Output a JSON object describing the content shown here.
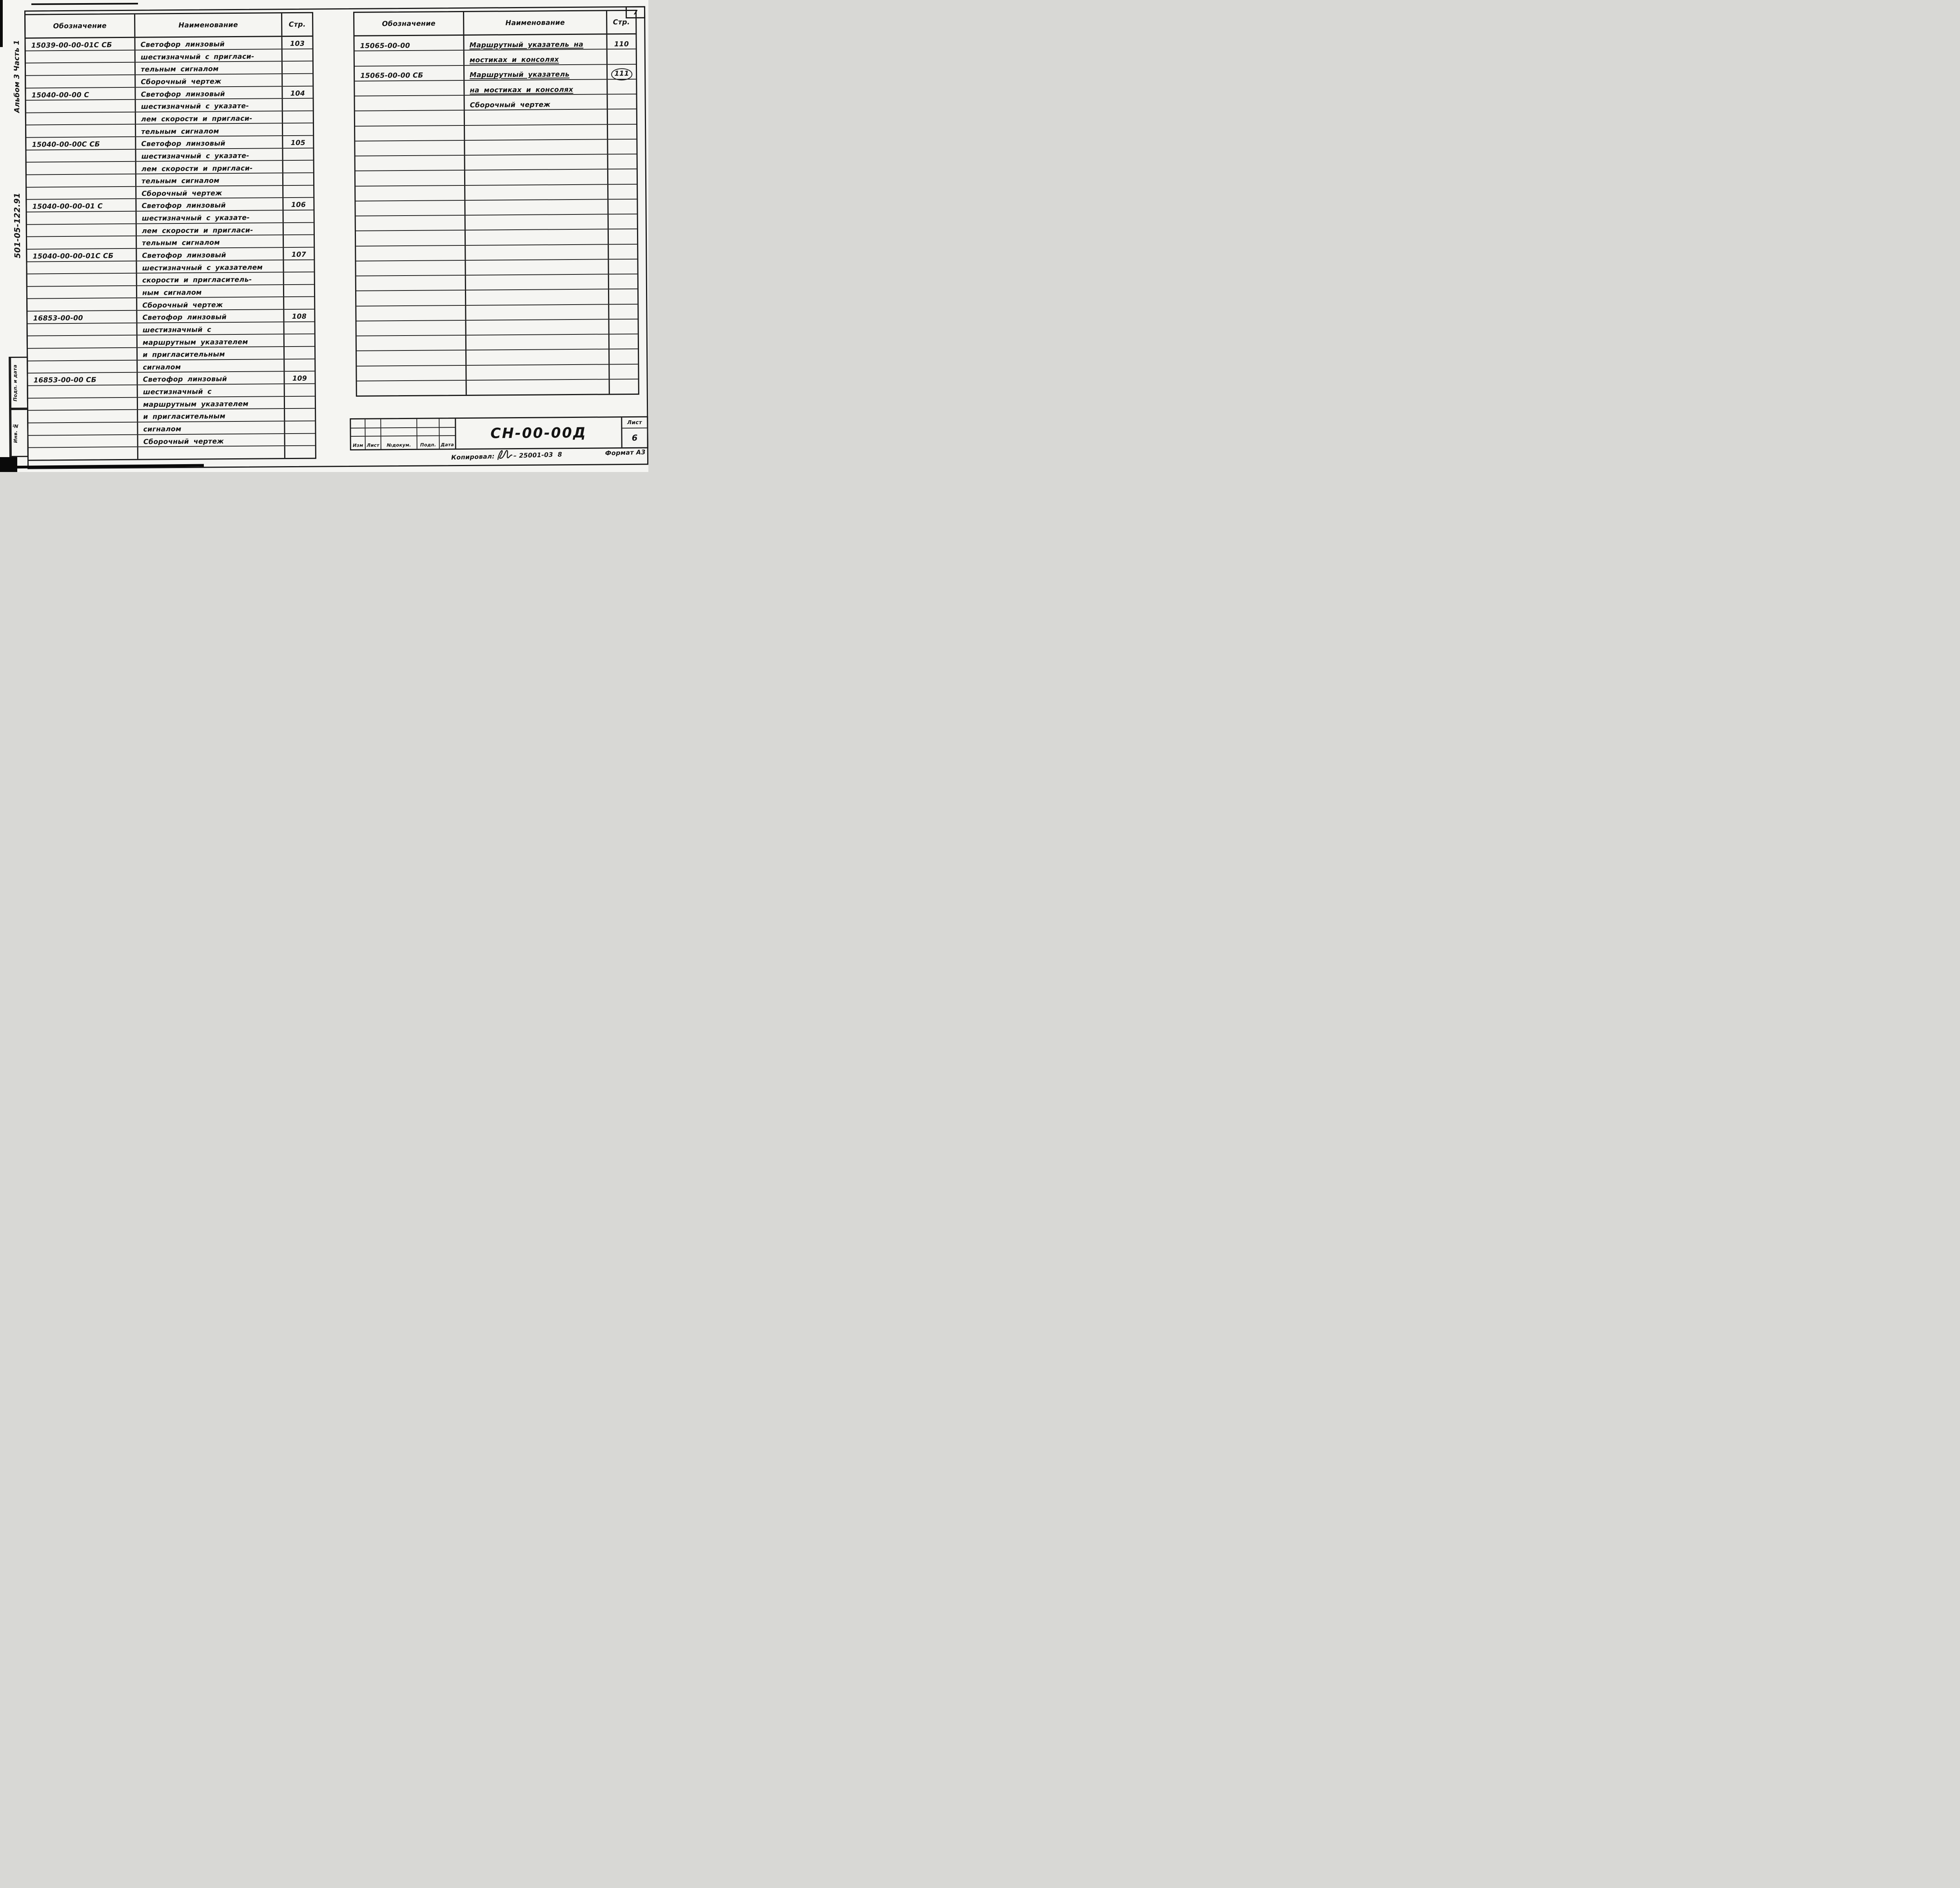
{
  "page": {
    "corner_number": "7"
  },
  "margin": {
    "album": "Альбом 3 Часть 1",
    "doc_number": "501-05-122.91",
    "sign_date_box": "Подп. и дата",
    "inventory_box": "Инв. №"
  },
  "left_table": {
    "headers": {
      "designation": "Обозначение",
      "name": "Наименование",
      "page": "Стр."
    },
    "rows": [
      {
        "designation": "15039-00-00-01С СБ",
        "name": "Светофор линзовый",
        "page": "103"
      },
      {
        "name": "шестизначный с пригласи-"
      },
      {
        "name": "тельным сигналом"
      },
      {
        "name": "Сборочный чертеж"
      },
      {
        "designation": "15040-00-00 С",
        "name": "Светофор линзовый",
        "page": "104"
      },
      {
        "name": "шестизначный с указате-"
      },
      {
        "name": "лем скорости и пригласи-"
      },
      {
        "name": "тельным сигналом"
      },
      {
        "designation": "15040-00-00С СБ",
        "name": "Светофор линзовый",
        "page": "105"
      },
      {
        "name": "шестизначный с указате-"
      },
      {
        "name": "лем скорости и пригласи-"
      },
      {
        "name": "тельным сигналом"
      },
      {
        "name": "Сборочный чертеж"
      },
      {
        "designation": "15040-00-00-01 С",
        "name": "Светофор линзовый",
        "page": "106"
      },
      {
        "name": "шестизначный с указате-"
      },
      {
        "name": "лем скорости и пригласи-"
      },
      {
        "name": "тельным сигналом"
      },
      {
        "designation": "15040-00-00-01С СБ",
        "name": "Светофор линзовый",
        "page": "107"
      },
      {
        "name": "шестизначный с указателем"
      },
      {
        "name": "скорости и пригласитель-"
      },
      {
        "name": "ным сигналом"
      },
      {
        "name": "Сборочный чертеж"
      },
      {
        "designation": "16853-00-00",
        "name": "Светофор линзовый",
        "page": "108"
      },
      {
        "name": "шестизначный с"
      },
      {
        "name": "маршрутным указателем"
      },
      {
        "name": "и пригласительным"
      },
      {
        "name": "сигналом"
      },
      {
        "designation": "16853-00-00 СБ",
        "name": "Светофор линзовый",
        "page": "109"
      },
      {
        "name": "шестизначный с"
      },
      {
        "name": "маршрутным указателем"
      },
      {
        "name": "и пригласительным"
      },
      {
        "name": "сигналом"
      },
      {
        "name": "Сборочный чертеж"
      },
      {}
    ]
  },
  "right_table": {
    "headers": {
      "designation": "Обозначение",
      "name": "Наименование",
      "page": "Стр."
    },
    "rows": [
      {
        "designation": "15065-00-00",
        "name": "Маршрутный указатель на",
        "page": "110",
        "underline": true
      },
      {
        "name": "мостиках и консолях",
        "underline": true
      },
      {
        "designation": "15065-00-00 СБ",
        "name": "Маршрутный указатель",
        "page": "111",
        "circled": true,
        "underline": true
      },
      {
        "name": "на мостиках и консолях",
        "underline": true
      },
      {
        "name": "Сборочный чертеж"
      },
      {},
      {},
      {},
      {},
      {},
      {},
      {},
      {},
      {},
      {},
      {},
      {},
      {},
      {},
      {},
      {},
      {},
      {},
      {}
    ]
  },
  "title_block": {
    "revision_headers": [
      "Изм",
      "Лист",
      "№докум.",
      "Подп.",
      "Дата"
    ],
    "document_code": "СН-00-00Д",
    "sheet_label": "Лист",
    "sheet_number": "6",
    "copied_label": "Копировал:",
    "copy_code": "– 25001-03  8",
    "format_label": "Формат А3"
  }
}
